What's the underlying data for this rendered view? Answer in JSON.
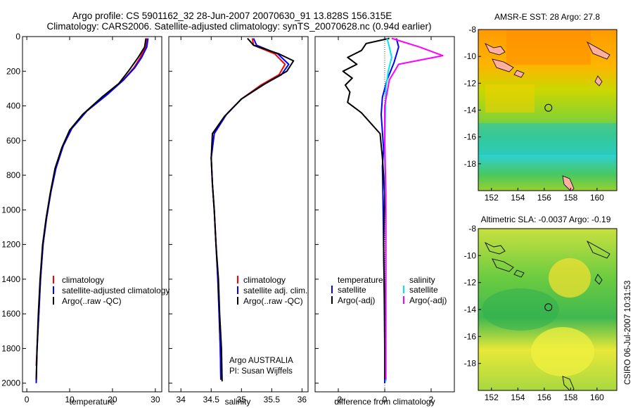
{
  "header": {
    "line1": "Argo profile: CS 5901162_32 28-Jun-2007 20070630_91 13.828S 156.315E",
    "line2": "Climatology: CARS2006. Satellite-adjusted climatology: synTS_20070628.nc (0.94d earlier)"
  },
  "colors": {
    "climatology": "#ff0000",
    "satellite": "#0000ff",
    "argo": "#000000",
    "salinity_satellite": "#00e5ee",
    "salinity_argo": "#ff00ff"
  },
  "chart_data": [
    {
      "type": "line",
      "name": "temperature-profile",
      "xlabel": "temperature",
      "ylabel": "",
      "xlim": [
        -1,
        31.5
      ],
      "ylim": [
        0,
        2050
      ],
      "y_reversed": true,
      "xticks": [
        0,
        10,
        20,
        30
      ],
      "yticks": [
        0,
        200,
        400,
        600,
        800,
        1000,
        1200,
        1400,
        1600,
        1800,
        2000
      ],
      "legend": [
        "climatology",
        "satellite-adjusted climatology",
        "Argo(..raw -QC)"
      ],
      "series": [
        {
          "name": "climatology",
          "color": "#ff0000",
          "x": [
            28.0,
            27.7,
            26.5,
            25.0,
            22.5,
            19.0,
            14.0,
            10.5,
            8.5,
            6.8,
            5.6,
            4.6,
            3.8,
            3.2,
            2.8,
            2.4,
            2.2
          ],
          "y": [
            10,
            60,
            120,
            180,
            250,
            330,
            430,
            530,
            630,
            760,
            900,
            1050,
            1200,
            1400,
            1600,
            1800,
            1900
          ]
        },
        {
          "name": "satellite-adjusted climatology",
          "color": "#0000ff",
          "x": [
            28.3,
            28.0,
            26.8,
            25.2,
            22.6,
            19.0,
            14.0,
            10.5,
            8.5,
            6.8,
            5.6,
            4.6,
            3.8,
            3.2,
            2.8,
            2.4,
            2.2
          ],
          "y": [
            10,
            60,
            120,
            180,
            250,
            330,
            430,
            530,
            630,
            760,
            900,
            1050,
            1200,
            1400,
            1600,
            1800,
            2000
          ]
        },
        {
          "name": "Argo(..raw -QC)",
          "color": "#000000",
          "x": [
            27.8,
            27.5,
            26.0,
            24.0,
            21.5,
            17.5,
            13.0,
            10.0,
            8.2,
            6.6,
            5.5,
            4.5,
            3.7,
            3.1,
            2.7,
            2.4,
            2.2
          ],
          "y": [
            10,
            60,
            120,
            190,
            270,
            350,
            450,
            540,
            640,
            760,
            900,
            1050,
            1200,
            1400,
            1600,
            1800,
            1980
          ]
        }
      ]
    },
    {
      "type": "line",
      "name": "salinity-profile",
      "xlabel": "salinity",
      "ylabel": "",
      "xlim": [
        33.8,
        36.1
      ],
      "ylim": [
        0,
        2050
      ],
      "y_reversed": true,
      "xticks": [
        34,
        34.5,
        35,
        35.5,
        36
      ],
      "legend": [
        "climatology",
        "satellite adj. clim.",
        "Argo(..raw -QC)"
      ],
      "annotations": [
        "Argo AUSTRALIA",
        "PI: Susan Wijffels"
      ],
      "series": [
        {
          "name": "climatology",
          "color": "#ff0000",
          "x": [
            35.18,
            35.2,
            35.55,
            35.72,
            35.62,
            35.32,
            35.0,
            34.75,
            34.55,
            34.5,
            34.52,
            34.55,
            34.58,
            34.61,
            34.63,
            34.65,
            34.66
          ],
          "y": [
            10,
            50,
            100,
            160,
            220,
            280,
            360,
            450,
            560,
            700,
            850,
            1000,
            1200,
            1400,
            1600,
            1800,
            1980
          ]
        },
        {
          "name": "satellite adj. clim.",
          "color": "#0000ff",
          "x": [
            35.2,
            35.25,
            35.6,
            35.78,
            35.66,
            35.35,
            35.0,
            34.75,
            34.55,
            34.5,
            34.52,
            34.55,
            34.58,
            34.61,
            34.63,
            34.65,
            34.66
          ],
          "y": [
            10,
            50,
            100,
            160,
            220,
            280,
            360,
            450,
            560,
            700,
            850,
            1000,
            1200,
            1400,
            1600,
            1800,
            1980
          ]
        },
        {
          "name": "Argo(..raw -QC)",
          "color": "#000000",
          "x": [
            35.1,
            35.2,
            35.62,
            35.86,
            35.75,
            35.4,
            35.0,
            34.72,
            34.52,
            34.5,
            34.52,
            34.55,
            34.58,
            34.62,
            34.64,
            34.67,
            34.68
          ],
          "y": [
            10,
            50,
            100,
            140,
            200,
            270,
            360,
            460,
            560,
            700,
            850,
            1000,
            1200,
            1400,
            1600,
            1800,
            1990
          ]
        }
      ]
    },
    {
      "type": "line",
      "name": "difference-profile",
      "xlabel": "difference from climatology",
      "ylabel": "",
      "xlim": [
        -3.0,
        3.0
      ],
      "ylim": [
        0,
        2050
      ],
      "y_reversed": true,
      "xticks": [
        -2,
        0,
        2
      ],
      "legend": [
        "temperature",
        "satellite",
        "Argo(-adj)",
        "salinity",
        "satellite",
        "Argo(-adj)"
      ],
      "series": [
        {
          "name": "temperature satellite",
          "color": "#0000ff",
          "x": [
            0.5,
            0.6,
            0.4,
            0.1,
            -0.1,
            -0.15,
            -0.1,
            -0.05,
            -0.1,
            -0.08,
            -0.05,
            -0.02,
            0.0,
            0.0
          ],
          "y": [
            10,
            60,
            150,
            250,
            350,
            450,
            550,
            650,
            750,
            900,
            1200,
            1500,
            1800,
            2000
          ]
        },
        {
          "name": "temperature Argo(-adj)",
          "color": "#000000",
          "x": [
            0.2,
            -0.8,
            -1.0,
            -1.6,
            -1.2,
            -1.8,
            -1.4,
            -1.7,
            -1.5,
            -1.6,
            -1.0,
            -0.2,
            -0.1,
            0.0,
            -0.05,
            0.0,
            0.0
          ],
          "y": [
            10,
            40,
            80,
            120,
            160,
            200,
            240,
            280,
            320,
            380,
            440,
            560,
            700,
            900,
            1200,
            1600,
            1980
          ]
        },
        {
          "name": "salinity satellite",
          "color": "#00e5ee",
          "x": [
            0.1,
            0.2,
            0.3,
            0.15,
            0.05,
            0.02,
            0.0,
            0.05,
            0.05,
            0.05,
            0.05
          ],
          "y": [
            10,
            60,
            120,
            200,
            300,
            500,
            700,
            1000,
            1400,
            1800,
            1990
          ]
        },
        {
          "name": "salinity Argo(-adj)",
          "color": "#ff00ff",
          "x": [
            0.3,
            1.5,
            2.5,
            0.6,
            0.2,
            0.0,
            0.0,
            0.05,
            0.05,
            0.05
          ],
          "y": [
            10,
            60,
            110,
            160,
            250,
            400,
            600,
            900,
            1400,
            1980
          ]
        }
      ]
    },
    {
      "type": "heatmap",
      "name": "sst-map",
      "title": "AMSR-E SST: 28  Argo: 27.8",
      "xlim": [
        151,
        161.5
      ],
      "ylim": [
        -20,
        -8
      ],
      "xticks": [
        152,
        154,
        156,
        158,
        160
      ],
      "yticks": [
        -8,
        -10,
        -12,
        -14,
        -16,
        -18
      ],
      "marker": {
        "lon": 156.315,
        "lat": -13.828
      }
    },
    {
      "type": "heatmap",
      "name": "sla-map",
      "title": "Altimetric SLA: -0.0037  Argo: -0.19",
      "xlim": [
        151,
        161.5
      ],
      "ylim": [
        -20,
        -8
      ],
      "xticks": [
        152,
        154,
        156,
        158,
        160
      ],
      "yticks": [
        -8,
        -10,
        -12,
        -14,
        -16,
        -18
      ],
      "marker": {
        "lon": 156.315,
        "lat": -13.828
      }
    }
  ],
  "side_stamp": "CSIRO 06-Jul-2007 10:31:53"
}
